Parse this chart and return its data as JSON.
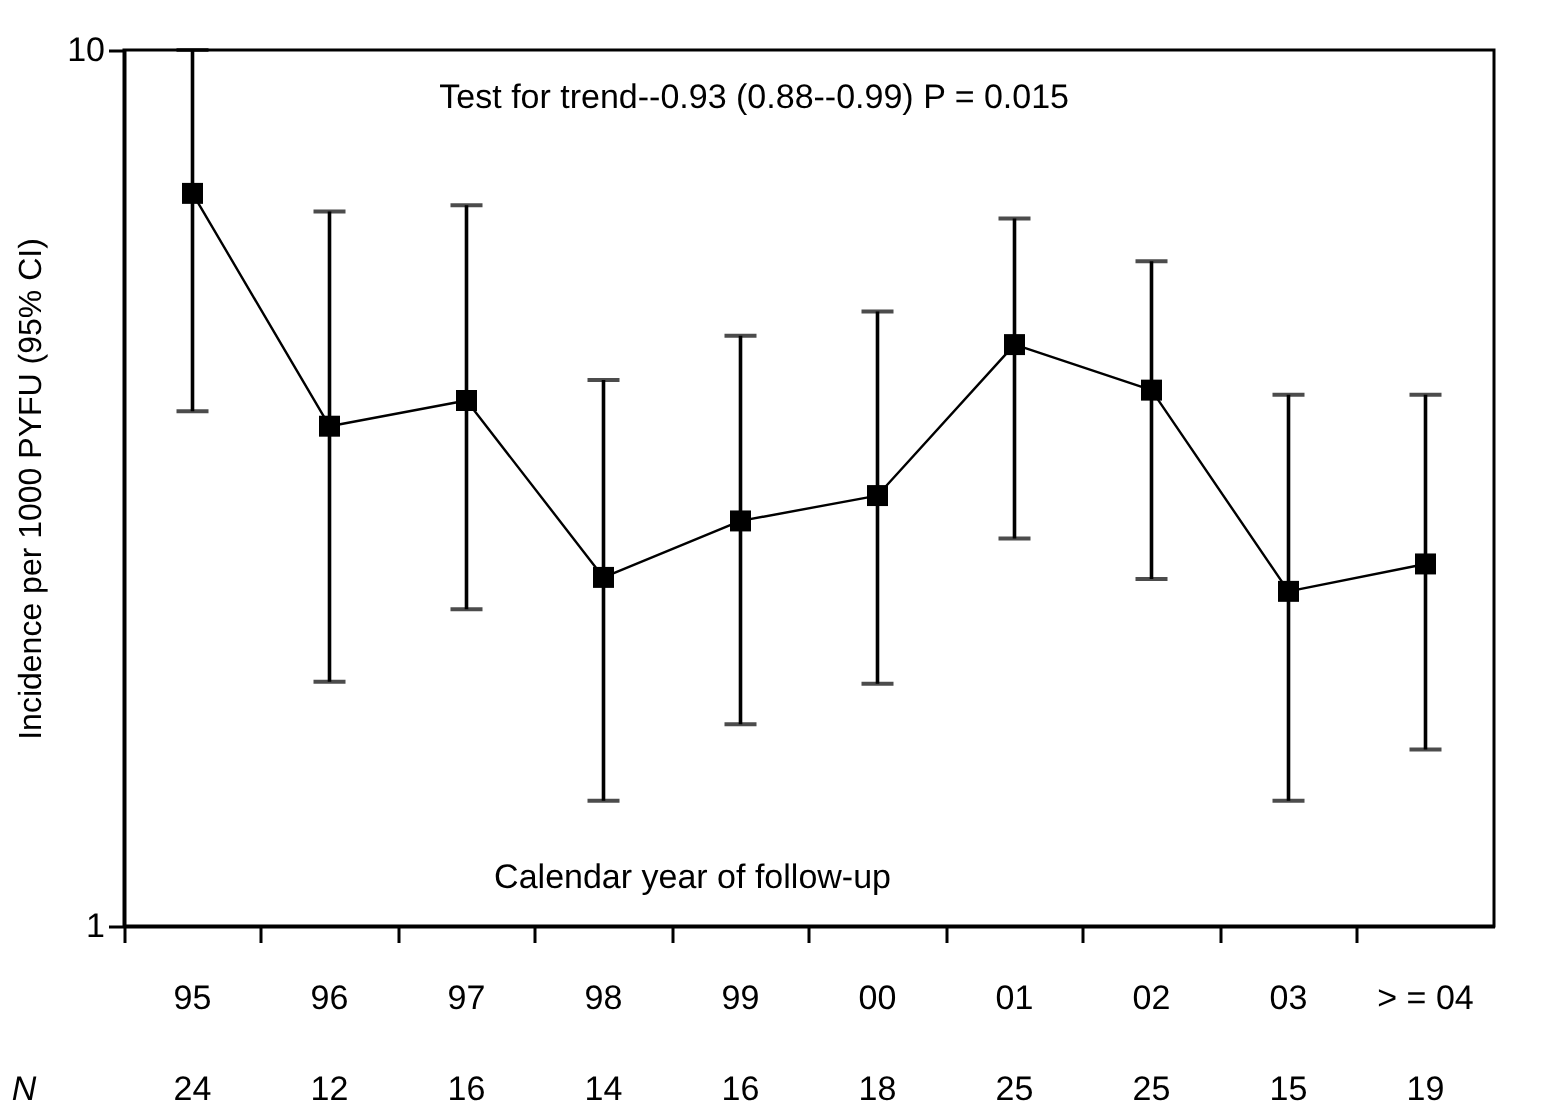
{
  "chart_data": {
    "type": "line",
    "ylabel": "Incidence per 1000 PYFU (95% CI)",
    "xlabel": "Calendar year of follow-up",
    "annotations": [
      "Test for trend--0.93 (0.88--0.99) P = 0.015",
      "N",
      "24",
      "12",
      "16",
      "14",
      "16",
      "18",
      "25",
      "25",
      "15",
      "19"
    ],
    "categories": [
      "95",
      "96",
      "97",
      "98",
      "99",
      "00",
      "01",
      "02",
      "03",
      "> = 04"
    ],
    "series": [
      {
        "color": "#000000",
        "values": [
          6.86,
          3.72,
          3.98,
          2.5,
          2.9,
          3.1,
          4.61,
          4.09,
          2.41,
          2.59
        ],
        "errors": [
          [
            3.87,
            10
          ],
          [
            1.9,
            6.54
          ],
          [
            2.3,
            6.65
          ],
          [
            1.39,
            4.2
          ],
          [
            1.7,
            4.72
          ],
          [
            1.89,
            5.03
          ],
          [
            2.77,
            6.42
          ],
          [
            2.49,
            5.74
          ],
          [
            1.39,
            4.04
          ],
          [
            1.59,
            4.04
          ]
        ]
      }
    ],
    "ylim": [
      1,
      10
    ],
    "yticks": [
      1,
      10
    ],
    "log": true,
    "marker": "square",
    "line_style": "solid"
  }
}
